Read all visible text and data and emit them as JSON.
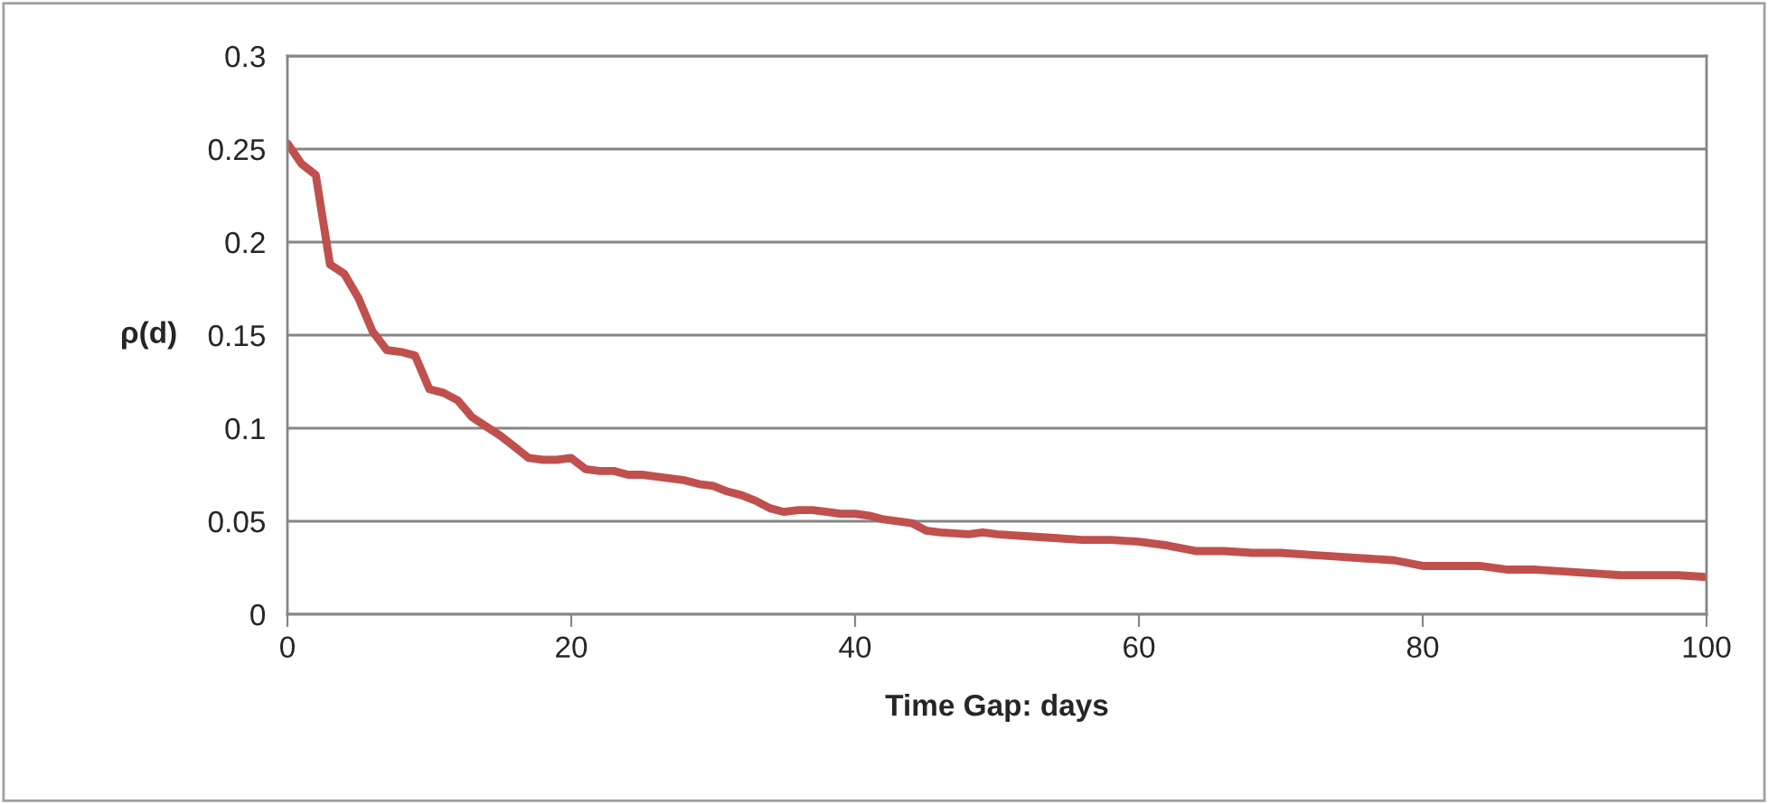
{
  "chart_data": {
    "type": "line",
    "xlabel": "Time Gap: days",
    "ylabel": "ρ(d)",
    "xlim": [
      0,
      100
    ],
    "xticks": [
      0,
      20,
      40,
      60,
      80,
      100
    ],
    "ylim": [
      0,
      0.3
    ],
    "yticks": [
      0,
      0.05,
      0.1,
      0.15,
      0.2,
      0.25,
      0.3
    ],
    "grid": "y",
    "legend": false,
    "series": [
      {
        "color": "#c0504d",
        "x": [
          0,
          1,
          2,
          3,
          4,
          5,
          6,
          7,
          8,
          9,
          10,
          11,
          12,
          13,
          14,
          15,
          16,
          17,
          18,
          19,
          20,
          21,
          22,
          23,
          24,
          25,
          26,
          27,
          28,
          29,
          30,
          31,
          32,
          33,
          34,
          35,
          36,
          37,
          38,
          39,
          40,
          41,
          42,
          44,
          45,
          46,
          48,
          49,
          50,
          52,
          54,
          56,
          58,
          60,
          62,
          64,
          66,
          68,
          70,
          72,
          74,
          76,
          78,
          80,
          82,
          84,
          86,
          88,
          90,
          92,
          94,
          96,
          98,
          100
        ],
        "values": [
          0.253,
          0.242,
          0.236,
          0.188,
          0.183,
          0.17,
          0.152,
          0.142,
          0.141,
          0.139,
          0.121,
          0.119,
          0.115,
          0.106,
          0.101,
          0.096,
          0.09,
          0.084,
          0.083,
          0.083,
          0.084,
          0.078,
          0.077,
          0.077,
          0.075,
          0.075,
          0.074,
          0.073,
          0.072,
          0.07,
          0.069,
          0.066,
          0.064,
          0.061,
          0.057,
          0.055,
          0.056,
          0.056,
          0.055,
          0.054,
          0.054,
          0.053,
          0.051,
          0.049,
          0.045,
          0.044,
          0.043,
          0.044,
          0.043,
          0.042,
          0.041,
          0.04,
          0.04,
          0.039,
          0.037,
          0.034,
          0.034,
          0.033,
          0.033,
          0.032,
          0.031,
          0.03,
          0.029,
          0.026,
          0.026,
          0.026,
          0.024,
          0.024,
          0.023,
          0.022,
          0.021,
          0.021,
          0.021,
          0.02
        ]
      }
    ]
  }
}
